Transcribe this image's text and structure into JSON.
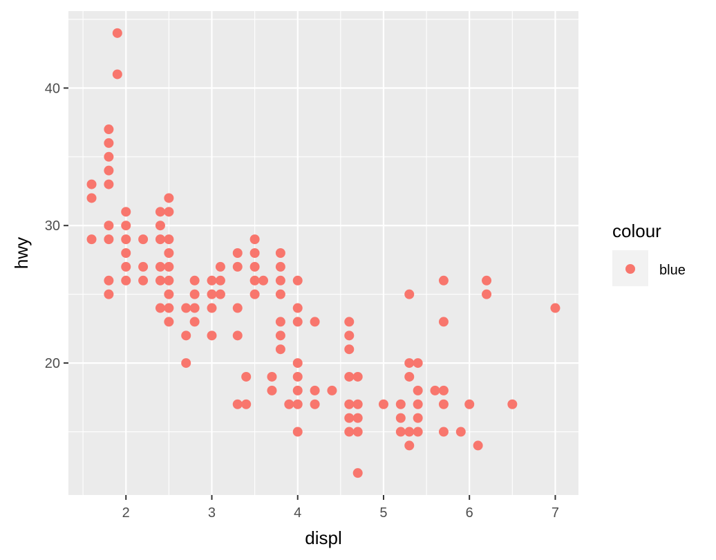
{
  "chart_data": {
    "type": "scatter",
    "xlabel": "displ",
    "ylabel": "hwy",
    "xlim": [
      1.33,
      7.27
    ],
    "ylim": [
      10.4,
      45.6
    ],
    "x_ticks": [
      2,
      3,
      4,
      5,
      6,
      7
    ],
    "x_tick_labels": [
      "2",
      "3",
      "4",
      "5",
      "6",
      "7"
    ],
    "y_ticks": [
      20,
      30,
      40
    ],
    "y_tick_labels": [
      "20",
      "30",
      "40"
    ],
    "grid": true,
    "legend": {
      "position": "right",
      "title": "colour",
      "entries": [
        {
          "label": "blue",
          "color": "#F8766D"
        }
      ]
    },
    "colors": {
      "panel": "#EBEBEB",
      "grid": "#FFFFFF",
      "point": "#F8766D"
    },
    "series": [
      {
        "name": "blue",
        "points": [
          [
            1.6,
            33
          ],
          [
            1.6,
            32
          ],
          [
            1.6,
            29
          ],
          [
            1.8,
            37
          ],
          [
            1.8,
            36
          ],
          [
            1.8,
            35
          ],
          [
            1.8,
            34
          ],
          [
            1.8,
            33
          ],
          [
            1.8,
            30
          ],
          [
            1.8,
            29
          ],
          [
            1.8,
            26
          ],
          [
            1.8,
            25
          ],
          [
            1.9,
            44
          ],
          [
            1.9,
            41
          ],
          [
            2.0,
            31
          ],
          [
            2.0,
            30
          ],
          [
            2.0,
            29
          ],
          [
            2.0,
            28
          ],
          [
            2.0,
            27
          ],
          [
            2.0,
            26
          ],
          [
            2.2,
            29
          ],
          [
            2.2,
            27
          ],
          [
            2.2,
            26
          ],
          [
            2.4,
            31
          ],
          [
            2.4,
            30
          ],
          [
            2.4,
            29
          ],
          [
            2.4,
            27
          ],
          [
            2.4,
            26
          ],
          [
            2.4,
            24
          ],
          [
            2.5,
            32
          ],
          [
            2.5,
            31
          ],
          [
            2.5,
            29
          ],
          [
            2.5,
            28
          ],
          [
            2.5,
            27
          ],
          [
            2.5,
            26
          ],
          [
            2.5,
            25
          ],
          [
            2.5,
            24
          ],
          [
            2.5,
            23
          ],
          [
            2.7,
            24
          ],
          [
            2.7,
            22
          ],
          [
            2.7,
            20
          ],
          [
            2.8,
            26
          ],
          [
            2.8,
            25
          ],
          [
            2.8,
            24
          ],
          [
            2.8,
            23
          ],
          [
            3.0,
            26
          ],
          [
            3.0,
            25
          ],
          [
            3.0,
            24
          ],
          [
            3.0,
            22
          ],
          [
            3.1,
            27
          ],
          [
            3.1,
            26
          ],
          [
            3.1,
            25
          ],
          [
            3.3,
            28
          ],
          [
            3.3,
            27
          ],
          [
            3.3,
            24
          ],
          [
            3.3,
            22
          ],
          [
            3.3,
            17
          ],
          [
            3.4,
            19
          ],
          [
            3.4,
            17
          ],
          [
            3.5,
            29
          ],
          [
            3.5,
            28
          ],
          [
            3.5,
            27
          ],
          [
            3.5,
            26
          ],
          [
            3.5,
            25
          ],
          [
            3.6,
            26
          ],
          [
            3.7,
            19
          ],
          [
            3.7,
            18
          ],
          [
            3.8,
            28
          ],
          [
            3.8,
            27
          ],
          [
            3.8,
            26
          ],
          [
            3.8,
            25
          ],
          [
            3.8,
            23
          ],
          [
            3.8,
            22
          ],
          [
            3.8,
            21
          ],
          [
            3.9,
            17
          ],
          [
            4.0,
            26
          ],
          [
            4.0,
            24
          ],
          [
            4.0,
            23
          ],
          [
            4.0,
            20
          ],
          [
            4.0,
            19
          ],
          [
            4.0,
            18
          ],
          [
            4.0,
            17
          ],
          [
            4.0,
            15
          ],
          [
            4.2,
            23
          ],
          [
            4.2,
            18
          ],
          [
            4.2,
            17
          ],
          [
            4.4,
            18
          ],
          [
            4.6,
            23
          ],
          [
            4.6,
            22
          ],
          [
            4.6,
            21
          ],
          [
            4.6,
            19
          ],
          [
            4.6,
            17
          ],
          [
            4.6,
            16
          ],
          [
            4.6,
            15
          ],
          [
            4.7,
            19
          ],
          [
            4.7,
            17
          ],
          [
            4.7,
            16
          ],
          [
            4.7,
            15
          ],
          [
            4.7,
            12
          ],
          [
            5.0,
            17
          ],
          [
            5.2,
            17
          ],
          [
            5.2,
            16
          ],
          [
            5.2,
            15
          ],
          [
            5.3,
            25
          ],
          [
            5.3,
            20
          ],
          [
            5.3,
            19
          ],
          [
            5.3,
            15
          ],
          [
            5.3,
            14
          ],
          [
            5.4,
            20
          ],
          [
            5.4,
            18
          ],
          [
            5.4,
            17
          ],
          [
            5.4,
            16
          ],
          [
            5.4,
            15
          ],
          [
            5.6,
            18
          ],
          [
            5.7,
            26
          ],
          [
            5.7,
            23
          ],
          [
            5.7,
            18
          ],
          [
            5.7,
            17
          ],
          [
            5.7,
            15
          ],
          [
            5.9,
            15
          ],
          [
            6.0,
            17
          ],
          [
            6.1,
            14
          ],
          [
            6.2,
            26
          ],
          [
            6.2,
            25
          ],
          [
            6.5,
            17
          ],
          [
            7.0,
            24
          ]
        ]
      }
    ]
  }
}
